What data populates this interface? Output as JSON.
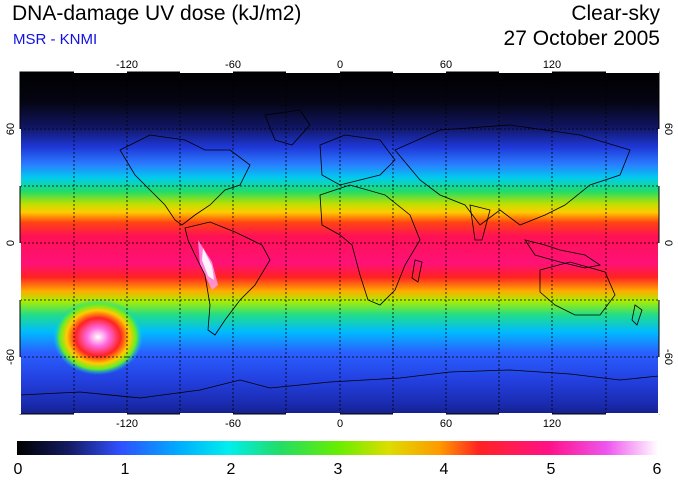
{
  "header": {
    "title": "DNA-damage UV dose (kJ/m2)",
    "subtitle": "MSR - KNMI",
    "condition": "Clear-sky",
    "date": "27 October 2005"
  },
  "map": {
    "lon_ticks": [
      "-120",
      "-60",
      "0",
      "60",
      "120"
    ],
    "lat_ticks_left": [
      "60",
      "0",
      "-60"
    ],
    "lat_ticks_right": [
      "60",
      "0",
      "-60"
    ]
  },
  "colorbar": {
    "labels": [
      "0",
      "1",
      "2",
      "3",
      "4",
      "5",
      "6"
    ],
    "stops": [
      "#000000",
      "#1e2aa0",
      "#2f4fff",
      "#00aaff",
      "#00eeee",
      "#22dd66",
      "#66ee00",
      "#dddd00",
      "#ff9900",
      "#ff2222",
      "#ff1188",
      "#ee55ee",
      "#ffffff"
    ]
  }
}
